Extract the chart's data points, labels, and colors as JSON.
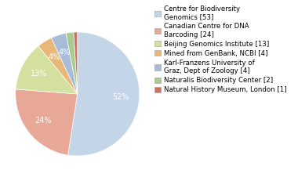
{
  "labels": [
    "Centre for Biodiversity\nGenomics [53]",
    "Canadian Centre for DNA\nBarcoding [24]",
    "Beijing Genomics Institute [13]",
    "Mined from GenBank, NCBI [4]",
    "Karl-Franzens University of\nGraz, Dept of Zoology [4]",
    "Naturalis Biodiversity Center [2]",
    "Natural History Museum, London [1]"
  ],
  "values": [
    53,
    24,
    13,
    4,
    4,
    2,
    1
  ],
  "colors": [
    "#c5d5e8",
    "#e8a898",
    "#d4e0a0",
    "#e8b87a",
    "#a8bcd8",
    "#a8cc90",
    "#cc7060"
  ],
  "startangle": 90,
  "background_color": "#ffffff",
  "text_color": "#000000",
  "pie_fontsize": 7.0,
  "legend_fontsize": 6.2
}
